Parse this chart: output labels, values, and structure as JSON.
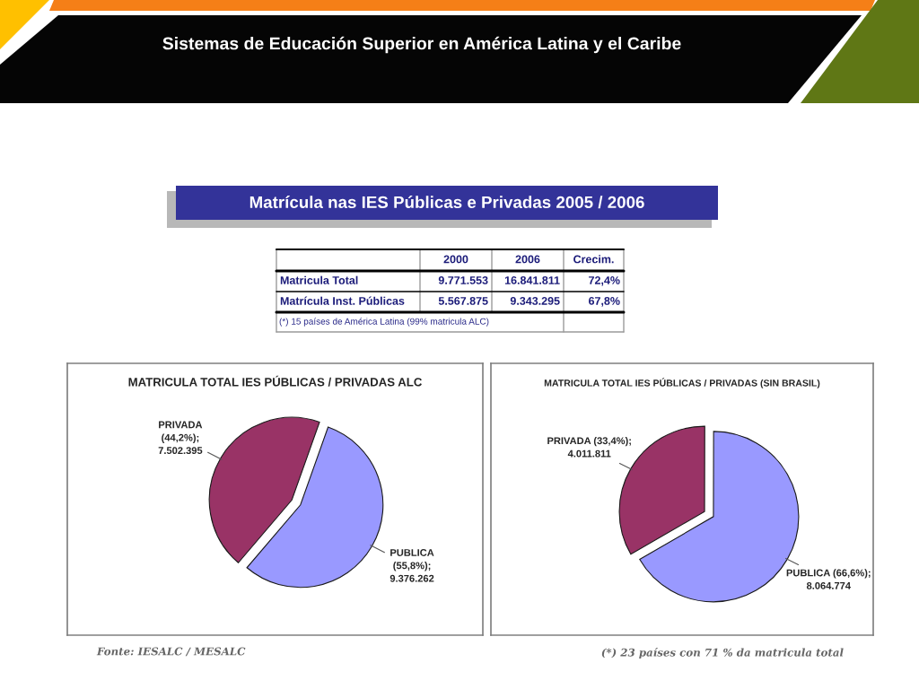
{
  "chart_data": [
    {
      "type": "other",
      "title": "Sistemas de Educación Superior en América Latina y el Caribe",
      "subtitle": "Matrícula nas IES Públicas e Privadas 2005 / 2006",
      "categories": [
        null,
        "2000",
        "2006",
        "Crecim."
      ],
      "y_categories": [
        "Matricula Total",
        "Matrícula Inst. Públicas"
      ],
      "cell_labels": [
        [
          "9.771.553",
          "16.841.811",
          "72,4%"
        ],
        [
          "5.567.875",
          "9.343.295",
          "67,8%"
        ]
      ],
      "annotations": [
        "(*) 15 países de América Latina (99% matricula ALC)"
      ]
    },
    {
      "type": "pie",
      "title": "MATRICULA TOTAL IES PÚBLICAS / PRIVADAS ALC",
      "categories": [
        "PRIVADA",
        "PUBLICA"
      ],
      "values": [
        44.2,
        55.8
      ],
      "colors": [
        "#993366",
        "#9999ff"
      ],
      "value_labels": [
        "(44,2%);\n7.502.395",
        "(55,8%);\n9.376.262"
      ],
      "annotations": [
        "Fonte: IESALC / MESALC"
      ]
    },
    {
      "type": "pie",
      "title": "MATRICULA TOTAL IES PÚBLICAS / PRIVADAS (SIN BRASIL)",
      "categories": [
        "PRIVADA",
        "PUBLICA"
      ],
      "values": [
        33.4,
        66.6
      ],
      "colors": [
        "#993366",
        "#9999ff"
      ],
      "value_labels": [
        "(33,4%);\n4.011.811",
        "(66,6%);\n8.064.774"
      ],
      "annotations": [
        "(*) 23 países con 71 % da matricula total"
      ]
    }
  ]
}
